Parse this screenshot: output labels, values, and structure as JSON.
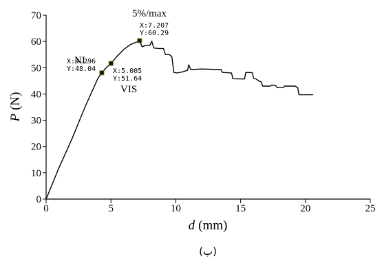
{
  "chart_data": {
    "type": "line",
    "xlabel_var": "d",
    "xlabel_unit": "(mm)",
    "ylabel_var": "P",
    "ylabel_unit": "(N)",
    "xlim": [
      0,
      25
    ],
    "ylim": [
      0,
      70
    ],
    "xticks": [
      0,
      5,
      10,
      15,
      20,
      25
    ],
    "yticks": [
      0,
      10,
      20,
      30,
      40,
      50,
      60,
      70
    ],
    "grid": false,
    "series": [
      {
        "points": [
          [
            0,
            0
          ],
          [
            0.5,
            6
          ],
          [
            1,
            12
          ],
          [
            1.5,
            17.5
          ],
          [
            2,
            23
          ],
          [
            2.5,
            29
          ],
          [
            3,
            35
          ],
          [
            3.5,
            40.5
          ],
          [
            4,
            46
          ],
          [
            4.296,
            48.04
          ],
          [
            4.6,
            49.8
          ],
          [
            5.005,
            51.64
          ],
          [
            5.5,
            54.5
          ],
          [
            6,
            57
          ],
          [
            6.5,
            58.8
          ],
          [
            7,
            59.8
          ],
          [
            7.207,
            60.29
          ],
          [
            7.4,
            58
          ],
          [
            7.7,
            58.5
          ],
          [
            8,
            58.5
          ],
          [
            8.15,
            60.1
          ],
          [
            8.3,
            57.5
          ],
          [
            8.7,
            57.3
          ],
          [
            9.05,
            57.3
          ],
          [
            9.2,
            55
          ],
          [
            9.5,
            55
          ],
          [
            9.7,
            54.2
          ],
          [
            9.85,
            48.2
          ],
          [
            10.1,
            48
          ],
          [
            10.5,
            48.4
          ],
          [
            10.9,
            49
          ],
          [
            11,
            51.1
          ],
          [
            11.15,
            49.3
          ],
          [
            12,
            49.5
          ],
          [
            13.5,
            49.3
          ],
          [
            13.6,
            48.2
          ],
          [
            14.3,
            48
          ],
          [
            14.4,
            45.8
          ],
          [
            15.3,
            45.7
          ],
          [
            15.4,
            48.2
          ],
          [
            15.9,
            48.1
          ],
          [
            16,
            46
          ],
          [
            16.2,
            45.7
          ],
          [
            16.4,
            45
          ],
          [
            16.6,
            44.5
          ],
          [
            16.7,
            43
          ],
          [
            17.3,
            43
          ],
          [
            17.4,
            43.4
          ],
          [
            17.7,
            43.2
          ],
          [
            17.8,
            42.5
          ],
          [
            18.3,
            42.5
          ],
          [
            18.4,
            43
          ],
          [
            19.2,
            43
          ],
          [
            19.4,
            42.5
          ],
          [
            19.5,
            39.7
          ],
          [
            20.6,
            39.7
          ]
        ]
      }
    ],
    "markers": [
      {
        "x": 4.296,
        "y": 48.04,
        "label": "NL",
        "xlabel": "X:4.296",
        "ylabel": "Y:48.04"
      },
      {
        "x": 5.005,
        "y": 51.64,
        "label": "VIS",
        "xlabel": "X:5.005",
        "ylabel": "Y:51.64"
      },
      {
        "x": 7.207,
        "y": 60.29,
        "label": "5%/max",
        "xlabel": "X:7.207",
        "ylabel": "Y:60.29"
      }
    ]
  },
  "caption": "(ب)"
}
